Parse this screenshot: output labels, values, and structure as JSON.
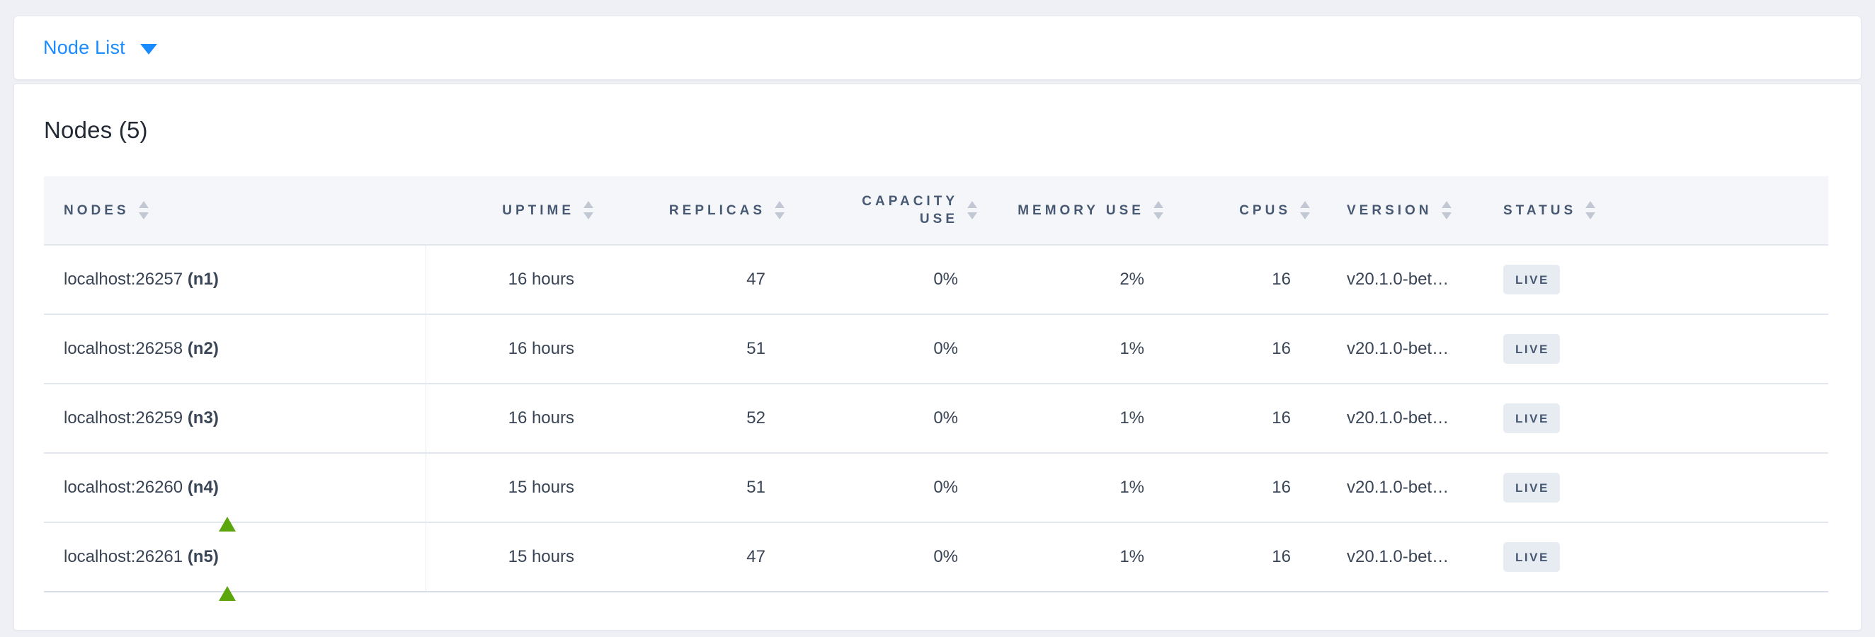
{
  "topbar": {
    "dropdown_label": "Node List"
  },
  "panel": {
    "title": "Nodes (5)"
  },
  "table": {
    "columns": [
      {
        "key": "nodes",
        "label": "NODES",
        "align": "left",
        "wrap": false,
        "icon": "sort-arrows-icon"
      },
      {
        "key": "uptime",
        "label": "UPTIME",
        "align": "right",
        "wrap": false,
        "icon": "sort-arrows-icon"
      },
      {
        "key": "replicas",
        "label": "REPLICAS",
        "align": "right",
        "wrap": false,
        "icon": "sort-arrows-icon"
      },
      {
        "key": "capacity",
        "label": "CAPACITY USE",
        "align": "right",
        "wrap": true,
        "icon": "sort-arrows-icon"
      },
      {
        "key": "memory",
        "label": "MEMORY USE",
        "align": "right",
        "wrap": false,
        "icon": "sort-arrows-icon"
      },
      {
        "key": "cpus",
        "label": "CPUS",
        "align": "right",
        "wrap": false,
        "icon": "sort-arrows-icon"
      },
      {
        "key": "version",
        "label": "VERSION",
        "align": "left",
        "wrap": false,
        "icon": "sort-arrows-icon"
      },
      {
        "key": "status",
        "label": "STATUS",
        "align": "left",
        "wrap": false,
        "icon": "sort-arrows-icon"
      }
    ],
    "rows": [
      {
        "address": "localhost:26257",
        "node_id": "(n1)",
        "uptime": "16 hours",
        "replicas": "47",
        "capacity": "0%",
        "memory": "2%",
        "cpus": "16",
        "version": "v20.1.0-bet…",
        "status": "LIVE",
        "annotation_arrow": false
      },
      {
        "address": "localhost:26258",
        "node_id": "(n2)",
        "uptime": "16 hours",
        "replicas": "51",
        "capacity": "0%",
        "memory": "1%",
        "cpus": "16",
        "version": "v20.1.0-bet…",
        "status": "LIVE",
        "annotation_arrow": false
      },
      {
        "address": "localhost:26259",
        "node_id": "(n3)",
        "uptime": "16 hours",
        "replicas": "52",
        "capacity": "0%",
        "memory": "1%",
        "cpus": "16",
        "version": "v20.1.0-bet…",
        "status": "LIVE",
        "annotation_arrow": false
      },
      {
        "address": "localhost:26260",
        "node_id": "(n4)",
        "uptime": "15 hours",
        "replicas": "51",
        "capacity": "0%",
        "memory": "1%",
        "cpus": "16",
        "version": "v20.1.0-bet…",
        "status": "LIVE",
        "annotation_arrow": true
      },
      {
        "address": "localhost:26261",
        "node_id": "(n5)",
        "uptime": "15 hours",
        "replicas": "47",
        "capacity": "0%",
        "memory": "1%",
        "cpus": "16",
        "version": "v20.1.0-bet…",
        "status": "LIVE",
        "annotation_arrow": true
      }
    ]
  },
  "colors": {
    "link_blue": "#1a8bff",
    "header_text": "#475872",
    "cell_text": "#394455",
    "badge_bg": "#e7ebf2",
    "annotation_arrow_green": "#5ba60d",
    "page_bg": "#eef0f5",
    "header_row_bg": "#f5f6f9"
  }
}
